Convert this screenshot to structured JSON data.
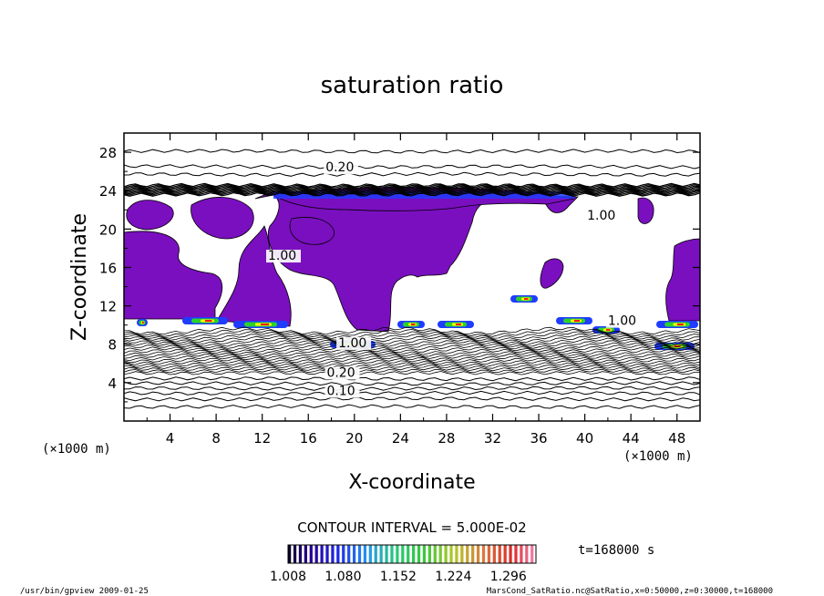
{
  "chart_data": {
    "type": "heatmap",
    "title": "saturation ratio",
    "xlabel": "X-coordinate",
    "ylabel": "Z-coordinate",
    "x_unit": "(×1000 m)",
    "y_unit": "(×1000 m)",
    "xlim": [
      0,
      50
    ],
    "ylim": [
      0,
      30
    ],
    "x_ticks": [
      "4",
      "8",
      "12",
      "16",
      "20",
      "24",
      "28",
      "32",
      "36",
      "40",
      "44",
      "48"
    ],
    "y_ticks": [
      "4",
      "8",
      "12",
      "16",
      "20",
      "24",
      "28"
    ],
    "contour_labels": [
      {
        "text": "0.20",
        "x": 17.5,
        "z": 26.0
      },
      {
        "text": "1.00",
        "x": 40.2,
        "z": 21.0
      },
      {
        "text": "1.00",
        "x": 12.5,
        "z": 16.8
      },
      {
        "text": "1.00",
        "x": 18.6,
        "z": 7.7
      },
      {
        "text": "1.00",
        "x": 42.0,
        "z": 10.0
      },
      {
        "text": "0.20",
        "x": 17.6,
        "z": 4.6
      },
      {
        "text": "0.10",
        "x": 17.6,
        "z": 2.7
      }
    ],
    "contour_interval": "CONTOUR INTERVAL = 5.000E-02",
    "colorbar": {
      "min": 1.008,
      "max": 1.332,
      "labels": [
        "1.008",
        "1.080",
        "1.152",
        "1.224",
        "1.296"
      ]
    },
    "time_label": "t=168000 s",
    "footer_left": "/usr/bin/gpview  2009-01-25",
    "footer_right": "MarsCond_SatRatio.nc@SatRatio,x=0:50000,z=0:30000,t=168000",
    "colors": {
      "low": "#7a0fbf",
      "mid_blue": "#1f3cff",
      "green": "#2cd22c",
      "yellow": "#ffff00",
      "red": "#ff1a1a"
    }
  }
}
